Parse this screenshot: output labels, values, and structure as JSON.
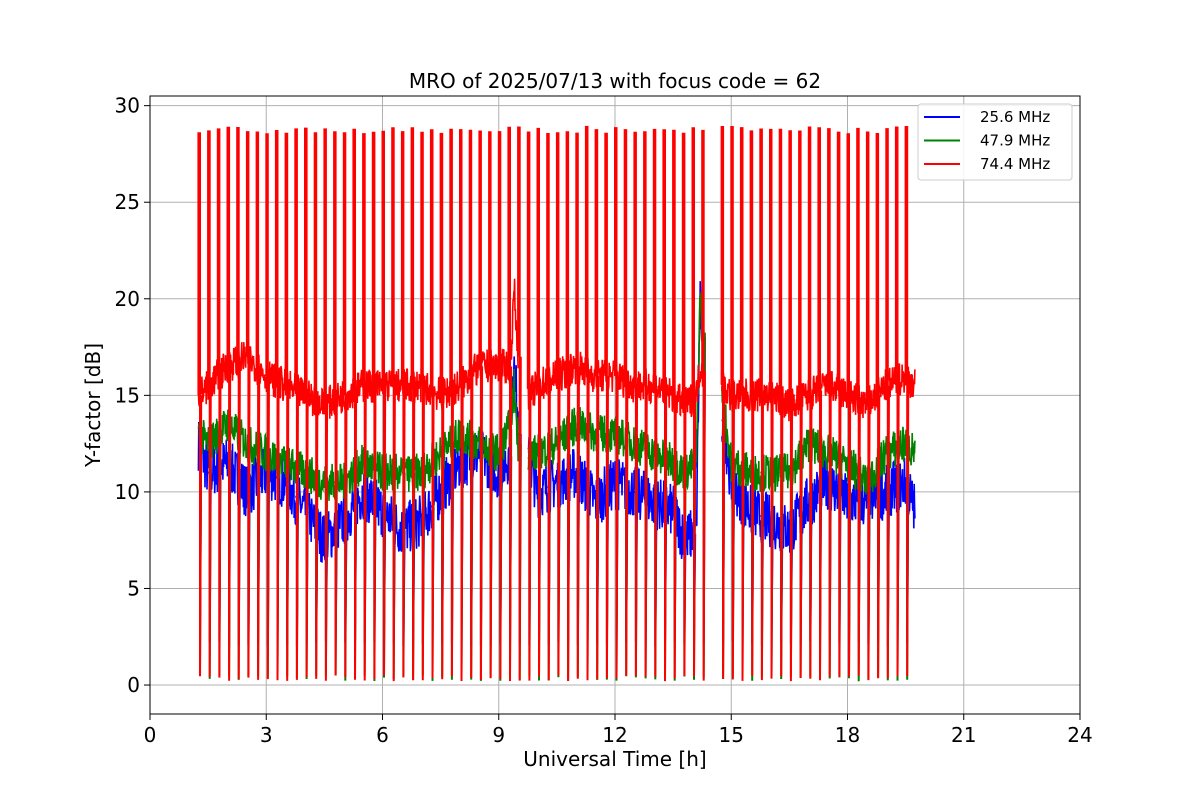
{
  "chart_data": {
    "type": "line",
    "title": "MRO of 2025/07/13 with focus code = 62",
    "xlabel": "Universal Time [h]",
    "ylabel": "Y-factor [dB]",
    "xlim": [
      0,
      24
    ],
    "ylim": [
      -1.5,
      30.5
    ],
    "xticks": [
      0,
      3,
      6,
      9,
      12,
      15,
      18,
      21,
      24
    ],
    "yticks": [
      0,
      5,
      10,
      15,
      20,
      25,
      30
    ],
    "grid": true,
    "legend_position": "top-right",
    "series": [
      {
        "name": "25.6 MHz",
        "color": "#0000ff",
        "baseline_points": [
          [
            1.25,
            12.5
          ],
          [
            1.5,
            11.0
          ],
          [
            2.0,
            11.5
          ],
          [
            2.5,
            10.0
          ],
          [
            3.0,
            11.0
          ],
          [
            3.5,
            10.5
          ],
          [
            4.0,
            9.0
          ],
          [
            4.5,
            7.5
          ],
          [
            5.0,
            8.5
          ],
          [
            5.5,
            10.0
          ],
          [
            6.0,
            9.0
          ],
          [
            6.5,
            8.0
          ],
          [
            7.0,
            8.5
          ],
          [
            7.5,
            10.0
          ],
          [
            8.0,
            11.5
          ],
          [
            8.5,
            12.0
          ],
          [
            9.0,
            11.0
          ],
          [
            9.3,
            12.0
          ],
          [
            9.4,
            17.5
          ],
          [
            9.5,
            13.0
          ],
          [
            9.8,
            11.5
          ],
          [
            10.0,
            10.0
          ],
          [
            10.5,
            10.5
          ],
          [
            11.0,
            11.0
          ],
          [
            11.5,
            9.5
          ],
          [
            12.0,
            10.5
          ],
          [
            12.5,
            10.0
          ],
          [
            13.0,
            9.5
          ],
          [
            13.5,
            9.0
          ],
          [
            13.8,
            7.5
          ],
          [
            14.1,
            8.0
          ],
          [
            14.2,
            20.5
          ],
          [
            14.3,
            15.5
          ],
          [
            14.8,
            13.5
          ],
          [
            15.0,
            10.5
          ],
          [
            15.5,
            9.0
          ],
          [
            16.0,
            8.5
          ],
          [
            16.5,
            8.0
          ],
          [
            17.0,
            9.5
          ],
          [
            17.5,
            10.5
          ],
          [
            18.0,
            9.5
          ],
          [
            18.5,
            9.5
          ],
          [
            19.0,
            10.0
          ],
          [
            19.5,
            10.5
          ],
          [
            19.75,
            9.0
          ]
        ],
        "dip_min": 2.0
      },
      {
        "name": "47.9 MHz",
        "color": "#008000",
        "baseline_points": [
          [
            1.25,
            13.0
          ],
          [
            1.5,
            12.5
          ],
          [
            2.0,
            13.5
          ],
          [
            2.5,
            12.5
          ],
          [
            3.0,
            12.0
          ],
          [
            3.5,
            11.5
          ],
          [
            4.0,
            11.0
          ],
          [
            4.5,
            10.5
          ],
          [
            5.0,
            10.5
          ],
          [
            5.5,
            11.5
          ],
          [
            6.0,
            11.0
          ],
          [
            6.5,
            11.0
          ],
          [
            7.0,
            11.0
          ],
          [
            7.5,
            12.0
          ],
          [
            8.0,
            13.0
          ],
          [
            8.5,
            12.5
          ],
          [
            9.0,
            12.0
          ],
          [
            9.3,
            13.5
          ],
          [
            9.4,
            15.5
          ],
          [
            9.5,
            12.5
          ],
          [
            9.8,
            12.0
          ],
          [
            10.0,
            12.0
          ],
          [
            10.5,
            12.5
          ],
          [
            11.0,
            13.5
          ],
          [
            11.5,
            13.0
          ],
          [
            12.0,
            13.0
          ],
          [
            12.5,
            12.5
          ],
          [
            13.0,
            12.0
          ],
          [
            13.5,
            11.5
          ],
          [
            13.8,
            11.0
          ],
          [
            14.1,
            11.5
          ],
          [
            14.2,
            20.5
          ],
          [
            14.3,
            16.0
          ],
          [
            14.8,
            14.5
          ],
          [
            15.0,
            11.5
          ],
          [
            15.5,
            11.0
          ],
          [
            16.0,
            11.0
          ],
          [
            16.5,
            11.0
          ],
          [
            17.0,
            12.5
          ],
          [
            17.5,
            12.0
          ],
          [
            18.0,
            11.5
          ],
          [
            18.5,
            10.5
          ],
          [
            19.0,
            12.0
          ],
          [
            19.5,
            12.5
          ],
          [
            19.75,
            12.0
          ]
        ],
        "dip_min": 0.2
      },
      {
        "name": "74.4 MHz",
        "color": "#ff0000",
        "baseline_points": [
          [
            1.25,
            15.0
          ],
          [
            1.5,
            15.5
          ],
          [
            2.0,
            16.5
          ],
          [
            2.5,
            17.0
          ],
          [
            3.0,
            16.0
          ],
          [
            3.5,
            15.5
          ],
          [
            4.0,
            15.0
          ],
          [
            4.5,
            14.5
          ],
          [
            5.0,
            15.0
          ],
          [
            5.5,
            15.5
          ],
          [
            6.0,
            15.5
          ],
          [
            6.5,
            15.5
          ],
          [
            7.0,
            15.5
          ],
          [
            7.5,
            15.0
          ],
          [
            8.0,
            15.5
          ],
          [
            8.5,
            16.5
          ],
          [
            9.0,
            16.5
          ],
          [
            9.3,
            16.5
          ],
          [
            9.4,
            20.5
          ],
          [
            9.5,
            17.0
          ],
          [
            9.8,
            15.0
          ],
          [
            10.0,
            15.5
          ],
          [
            10.5,
            16.0
          ],
          [
            11.0,
            16.5
          ],
          [
            11.5,
            16.0
          ],
          [
            12.0,
            16.0
          ],
          [
            12.5,
            15.5
          ],
          [
            13.0,
            15.5
          ],
          [
            13.5,
            15.0
          ],
          [
            13.8,
            14.5
          ],
          [
            14.1,
            15.0
          ],
          [
            14.2,
            16.5
          ],
          [
            14.3,
            16.0
          ],
          [
            14.8,
            15.5
          ],
          [
            15.0,
            15.0
          ],
          [
            15.5,
            15.0
          ],
          [
            16.0,
            15.0
          ],
          [
            16.5,
            14.5
          ],
          [
            17.0,
            15.0
          ],
          [
            17.5,
            15.5
          ],
          [
            18.0,
            15.0
          ],
          [
            18.5,
            14.5
          ],
          [
            19.0,
            15.5
          ],
          [
            19.5,
            16.0
          ],
          [
            19.75,
            15.5
          ]
        ],
        "spike_max": 28.9,
        "dip_min": 0.2
      }
    ],
    "periodic_spikes": {
      "start_h": 1.25,
      "end_h": 19.6,
      "period_h": 0.25,
      "gap_ranges_h": [
        [
          9.5,
          9.75
        ],
        [
          14.3,
          14.75
        ]
      ]
    }
  }
}
